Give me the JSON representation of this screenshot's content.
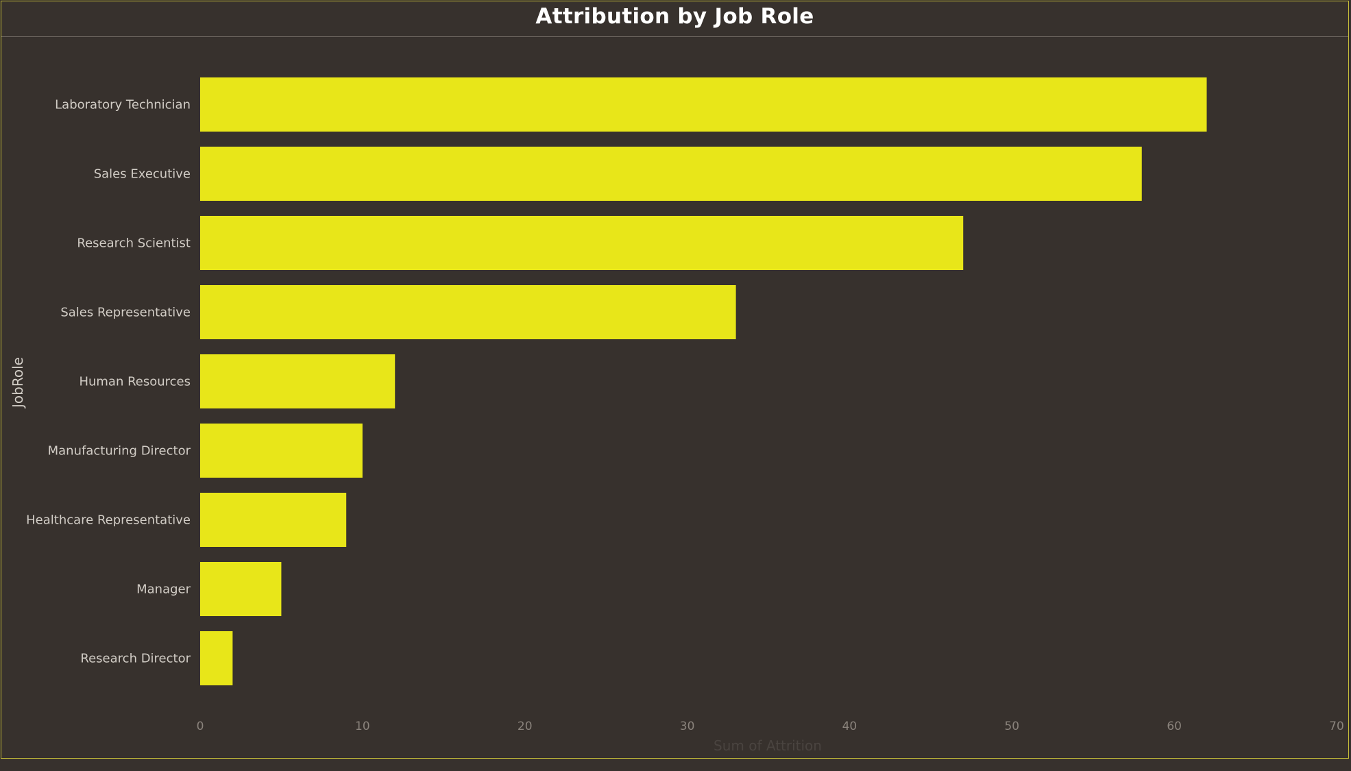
{
  "chart_data": {
    "type": "bar",
    "orientation": "horizontal",
    "title": "Attribution by Job Role",
    "xlabel": "Sum of Attrition",
    "ylabel": "JobRole",
    "categories": [
      "Laboratory Technician",
      "Sales Executive",
      "Research Scientist",
      "Sales Representative",
      "Human Resources",
      "Manufacturing Director",
      "Healthcare Representative",
      "Manager",
      "Research Director"
    ],
    "values": [
      62,
      58,
      47,
      33,
      12,
      10,
      9,
      5,
      2
    ],
    "xlim": [
      0,
      70
    ],
    "xticks": [
      0,
      10,
      20,
      30,
      40,
      50,
      60,
      70
    ],
    "grid": false,
    "legend": "none"
  },
  "colors": {
    "background": "#37312d",
    "bar": "#e8e619",
    "border": "#c8bf3a"
  }
}
